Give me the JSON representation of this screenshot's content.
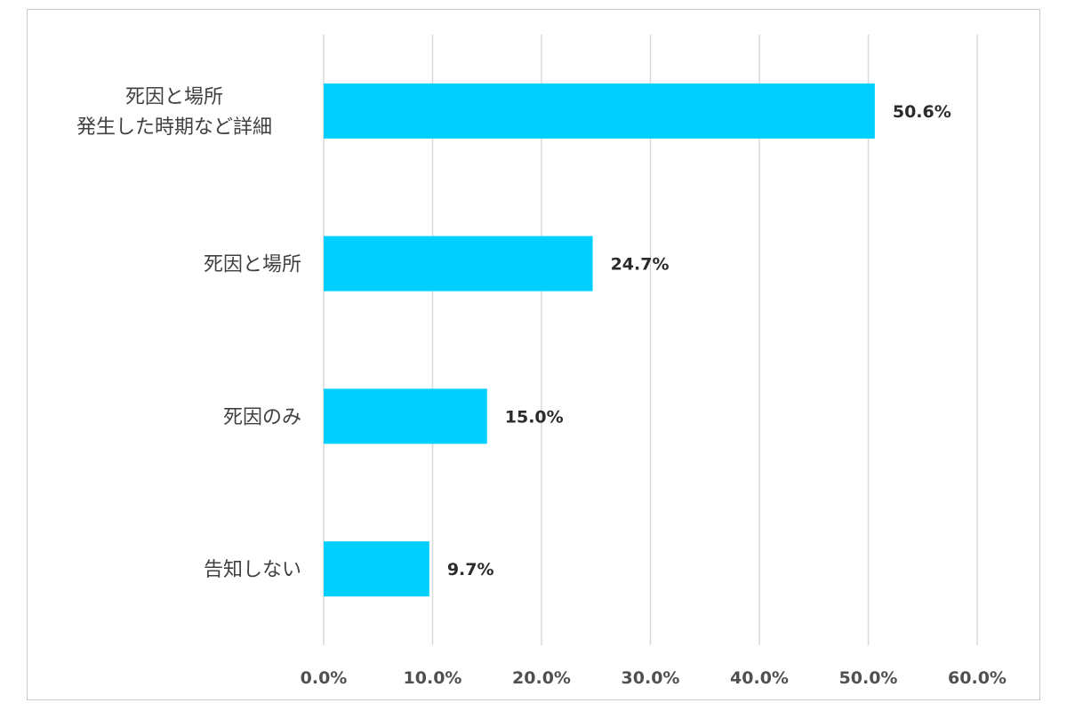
{
  "chart_data": {
    "type": "bar",
    "orientation": "horizontal",
    "categories": [
      [
        "死因と場所",
        "発生した時期など詳細"
      ],
      [
        "死因と場所"
      ],
      [
        "死因のみ"
      ],
      [
        "告知しない"
      ]
    ],
    "values": [
      50.6,
      24.7,
      15.0,
      9.7
    ],
    "data_labels": [
      "50.6%",
      "24.7%",
      "15.0%",
      "9.7%"
    ],
    "xlim": [
      0,
      60
    ],
    "x_ticks": [
      0,
      10,
      20,
      30,
      40,
      50,
      60
    ],
    "x_tick_labels": [
      "0.0%",
      "10.0%",
      "20.0%",
      "30.0%",
      "40.0%",
      "50.0%",
      "60.0%"
    ],
    "grid": "vertical",
    "legend": "none",
    "colors": {
      "bar": "#00cfff",
      "grid": "#d9d9d9"
    }
  }
}
